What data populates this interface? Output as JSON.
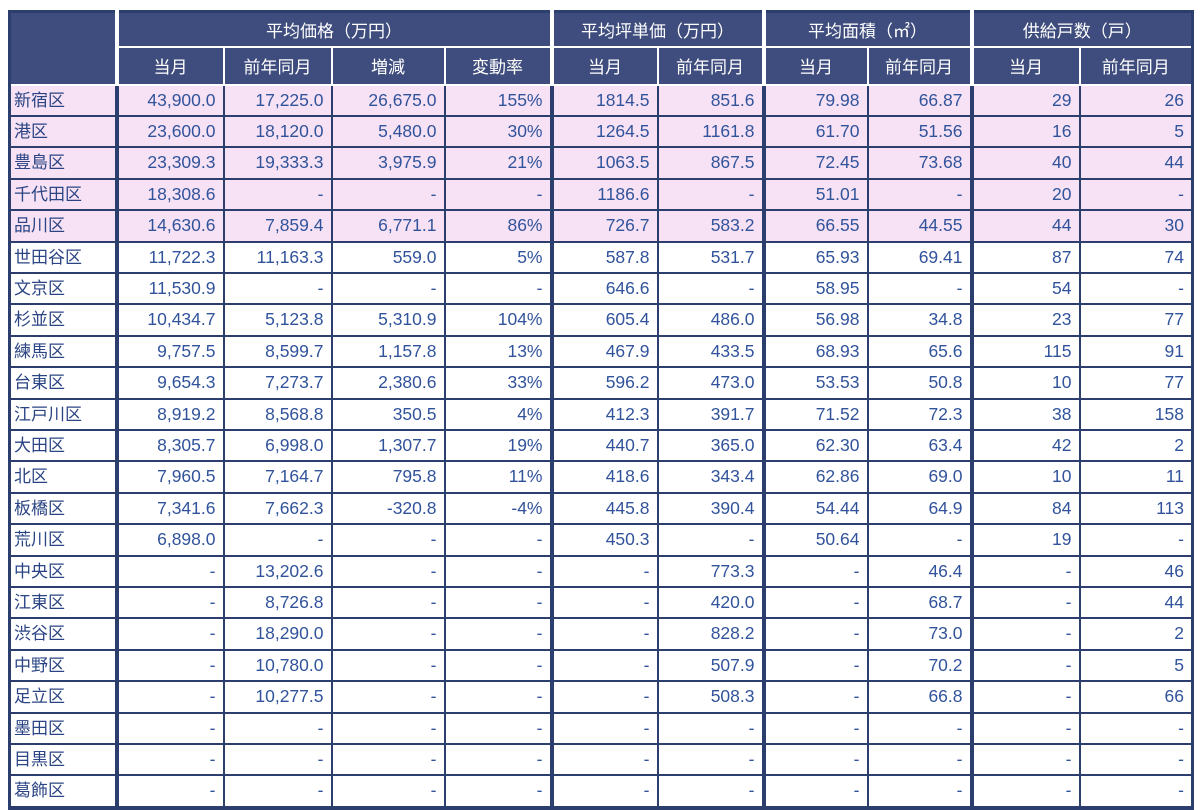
{
  "chart_data": {
    "type": "table",
    "title": "",
    "row_header_label": "",
    "column_groups": [
      {
        "label": "平均価格（万円）",
        "subcolumns": [
          "当月",
          "前年同月",
          "増減",
          "変動率"
        ]
      },
      {
        "label": "平均坪単価（万円）",
        "subcolumns": [
          "当月",
          "前年同月"
        ]
      },
      {
        "label": "平均面積（㎡）",
        "subcolumns": [
          "当月",
          "前年同月"
        ]
      },
      {
        "label": "供給戸数（戸）",
        "subcolumns": [
          "当月",
          "前年同月"
        ]
      }
    ],
    "rows": [
      {
        "ward": "新宿区",
        "highlight": true,
        "cells": [
          "43,900.0",
          "17,225.0",
          "26,675.0",
          "155%",
          "1814.5",
          "851.6",
          "79.98",
          "66.87",
          "29",
          "26"
        ]
      },
      {
        "ward": "港区",
        "highlight": true,
        "cells": [
          "23,600.0",
          "18,120.0",
          "5,480.0",
          "30%",
          "1264.5",
          "1161.8",
          "61.70",
          "51.56",
          "16",
          "5"
        ]
      },
      {
        "ward": "豊島区",
        "highlight": true,
        "cells": [
          "23,309.3",
          "19,333.3",
          "3,975.9",
          "21%",
          "1063.5",
          "867.5",
          "72.45",
          "73.68",
          "40",
          "44"
        ]
      },
      {
        "ward": "千代田区",
        "highlight": true,
        "cells": [
          "18,308.6",
          "-",
          "-",
          "-",
          "1186.6",
          "-",
          "51.01",
          "-",
          "20",
          "-"
        ]
      },
      {
        "ward": "品川区",
        "highlight": true,
        "cells": [
          "14,630.6",
          "7,859.4",
          "6,771.1",
          "86%",
          "726.7",
          "583.2",
          "66.55",
          "44.55",
          "44",
          "30"
        ]
      },
      {
        "ward": "世田谷区",
        "highlight": false,
        "cells": [
          "11,722.3",
          "11,163.3",
          "559.0",
          "5%",
          "587.8",
          "531.7",
          "65.93",
          "69.41",
          "87",
          "74"
        ]
      },
      {
        "ward": "文京区",
        "highlight": false,
        "cells": [
          "11,530.9",
          "-",
          "-",
          "-",
          "646.6",
          "-",
          "58.95",
          "-",
          "54",
          "-"
        ]
      },
      {
        "ward": "杉並区",
        "highlight": false,
        "cells": [
          "10,434.7",
          "5,123.8",
          "5,310.9",
          "104%",
          "605.4",
          "486.0",
          "56.98",
          "34.8",
          "23",
          "77"
        ]
      },
      {
        "ward": "練馬区",
        "highlight": false,
        "cells": [
          "9,757.5",
          "8,599.7",
          "1,157.8",
          "13%",
          "467.9",
          "433.5",
          "68.93",
          "65.6",
          "115",
          "91"
        ]
      },
      {
        "ward": "台東区",
        "highlight": false,
        "cells": [
          "9,654.3",
          "7,273.7",
          "2,380.6",
          "33%",
          "596.2",
          "473.0",
          "53.53",
          "50.8",
          "10",
          "77"
        ]
      },
      {
        "ward": "江戸川区",
        "highlight": false,
        "cells": [
          "8,919.2",
          "8,568.8",
          "350.5",
          "4%",
          "412.3",
          "391.7",
          "71.52",
          "72.3",
          "38",
          "158"
        ]
      },
      {
        "ward": "大田区",
        "highlight": false,
        "cells": [
          "8,305.7",
          "6,998.0",
          "1,307.7",
          "19%",
          "440.7",
          "365.0",
          "62.30",
          "63.4",
          "42",
          "2"
        ]
      },
      {
        "ward": "北区",
        "highlight": false,
        "cells": [
          "7,960.5",
          "7,164.7",
          "795.8",
          "11%",
          "418.6",
          "343.4",
          "62.86",
          "69.0",
          "10",
          "11"
        ]
      },
      {
        "ward": "板橋区",
        "highlight": false,
        "cells": [
          "7,341.6",
          "7,662.3",
          "-320.8",
          "-4%",
          "445.8",
          "390.4",
          "54.44",
          "64.9",
          "84",
          "113"
        ]
      },
      {
        "ward": "荒川区",
        "highlight": false,
        "cells": [
          "6,898.0",
          "-",
          "-",
          "-",
          "450.3",
          "-",
          "50.64",
          "-",
          "19",
          "-"
        ]
      },
      {
        "ward": "中央区",
        "highlight": false,
        "cells": [
          "-",
          "13,202.6",
          "-",
          "-",
          "-",
          "773.3",
          "-",
          "46.4",
          "-",
          "46"
        ]
      },
      {
        "ward": "江東区",
        "highlight": false,
        "cells": [
          "-",
          "8,726.8",
          "-",
          "-",
          "-",
          "420.0",
          "-",
          "68.7",
          "-",
          "44"
        ]
      },
      {
        "ward": "渋谷区",
        "highlight": false,
        "cells": [
          "-",
          "18,290.0",
          "-",
          "-",
          "-",
          "828.2",
          "-",
          "73.0",
          "-",
          "2"
        ]
      },
      {
        "ward": "中野区",
        "highlight": false,
        "cells": [
          "-",
          "10,780.0",
          "-",
          "-",
          "-",
          "507.9",
          "-",
          "70.2",
          "-",
          "5"
        ]
      },
      {
        "ward": "足立区",
        "highlight": false,
        "cells": [
          "-",
          "10,277.5",
          "-",
          "-",
          "-",
          "508.3",
          "-",
          "66.8",
          "-",
          "66"
        ]
      },
      {
        "ward": "墨田区",
        "highlight": false,
        "cells": [
          "-",
          "-",
          "-",
          "-",
          "-",
          "-",
          "-",
          "-",
          "-",
          "-"
        ]
      },
      {
        "ward": "目黒区",
        "highlight": false,
        "cells": [
          "-",
          "-",
          "-",
          "-",
          "-",
          "-",
          "-",
          "-",
          "-",
          "-"
        ]
      },
      {
        "ward": "葛飾区",
        "highlight": false,
        "cells": [
          "-",
          "-",
          "-",
          "-",
          "-",
          "-",
          "-",
          "-",
          "-",
          "-"
        ]
      }
    ],
    "layout_hints": {
      "highlight_meaning": "top-price wards shaded pink",
      "group_start_cell_indices": [
        0,
        4,
        6,
        8
      ]
    }
  },
  "colors": {
    "header_bg": "#3f4d7e",
    "header_text": "#ffffff",
    "border": "#2c3e6d",
    "highlight_row_bg": "#f6e2f4",
    "row_bg": "#ffffff",
    "data_text": "#31539b",
    "row_label_text": "#2b4484"
  }
}
